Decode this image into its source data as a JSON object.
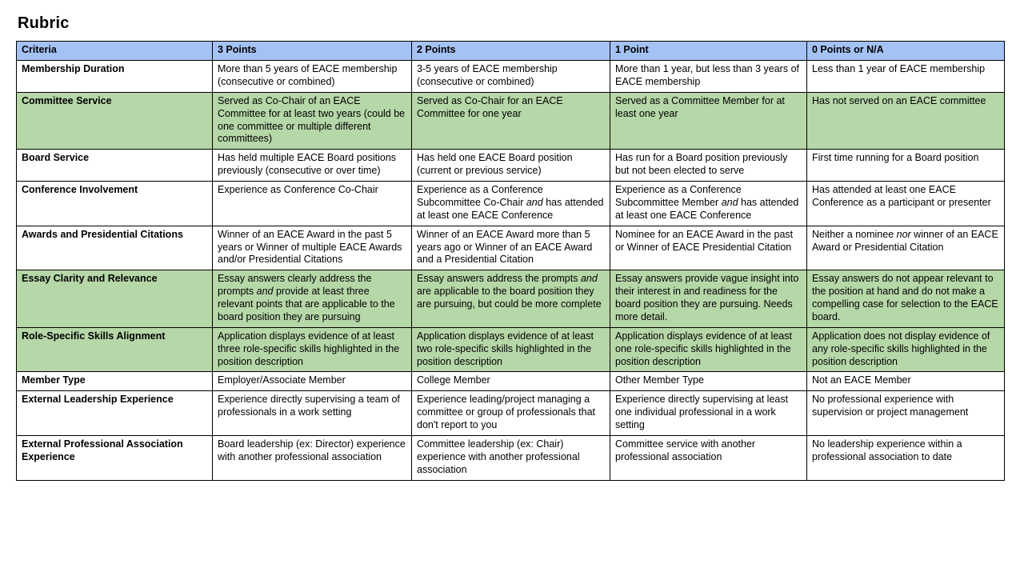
{
  "page": {
    "title": "Rubric"
  },
  "colors": {
    "header_bg": "#A4C2F4",
    "highlight_bg": "#B6D7A8",
    "row_bg": "#FFFFFF",
    "border": "#000000",
    "text": "#000000"
  },
  "table": {
    "headers": [
      "Criteria",
      "3 Points",
      "2 Points",
      "1 Point",
      "0 Points or N/A"
    ],
    "rows": [
      {
        "criteria": "Membership Duration",
        "highlight": false,
        "cells": [
          "More than 5 years of EACE membership (consecutive or combined)",
          "3-5 years of EACE membership (consecutive or combined)",
          "More than 1 year, but less than 3 years of EACE membership",
          "Less than 1 year of EACE membership"
        ]
      },
      {
        "criteria": "Committee Service",
        "highlight": true,
        "cells": [
          "Served as Co-Chair of an EACE Committee for at least two years (could be one committee or multiple different committees)",
          "Served as Co-Chair for an EACE Committee for one year",
          "Served as a Committee Member for at least one year",
          "Has not served on an EACE committee"
        ]
      },
      {
        "criteria": "Board Service",
        "highlight": false,
        "cells": [
          "Has held multiple EACE Board positions previously (consecutive or over time)",
          "Has held one EACE Board position (current or previous service)",
          "Has run for a Board position previously but not been elected to serve",
          "First time running for a Board position"
        ]
      },
      {
        "criteria": "Conference Involvement",
        "highlight": false,
        "cells": [
          "Experience as Conference Co-Chair",
          "Experience as a Conference Subcommittee Co-Chair *and* has attended at least one EACE Conference",
          "Experience as a Conference Subcommittee Member *and* has attended at least one EACE Conference",
          "Has attended at least one EACE Conference as a participant or presenter"
        ]
      },
      {
        "criteria": "Awards and Presidential Citations",
        "highlight": false,
        "cells": [
          "Winner of an EACE Award in the past 5 years or Winner of multiple EACE Awards and/or Presidential Citations",
          "Winner of an EACE Award more than 5 years ago or Winner of an EACE Award and a Presidential Citation",
          "Nominee for an EACE Award in the past or Winner of EACE Presidential Citation",
          "Neither a nominee *nor* winner of an EACE Award or Presidential Citation"
        ]
      },
      {
        "criteria": "Essay Clarity and Relevance",
        "highlight": true,
        "cells": [
          "Essay answers clearly address the prompts *and* provide at least three relevant points that are applicable to the board position they are pursuing",
          "Essay answers address the prompts *and* are applicable to the board position they are pursuing, but could be more complete",
          "Essay answers provide vague insight into their interest in and readiness for the board position they are pursuing. Needs more detail.",
          "Essay answers do not appear relevant to the position at hand and do not make a compelling case for selection to the EACE board."
        ]
      },
      {
        "criteria": "Role-Specific Skills Alignment",
        "highlight": true,
        "cells": [
          "Application displays evidence of at least three role-specific skills highlighted in the position description",
          "Application displays evidence of at least two role-specific skills highlighted in the position description",
          "Application displays evidence of at least one role-specific skills highlighted in the position description",
          "Application does not display evidence of any role-specific skills highlighted in the position description"
        ]
      },
      {
        "criteria": "Member Type",
        "highlight": false,
        "cells": [
          "Employer/Associate Member",
          "College Member",
          "Other Member Type",
          "Not an EACE Member"
        ]
      },
      {
        "criteria": "External Leadership Experience",
        "highlight": false,
        "cells": [
          "Experience directly supervising a team of professionals in a work setting",
          "Experience leading/project managing a committee or group of professionals that don't report to you",
          "Experience directly supervising at least one individual professional in a work setting",
          "No professional experience with supervision or project management"
        ]
      },
      {
        "criteria": "External Professional Association Experience",
        "highlight": false,
        "cells": [
          "Board leadership (ex: Director) experience with another professional association",
          "Committee leadership (ex: Chair) experience with another professional association",
          "Committee service with another professional association",
          "No leadership experience within a professional association to date"
        ]
      }
    ]
  }
}
